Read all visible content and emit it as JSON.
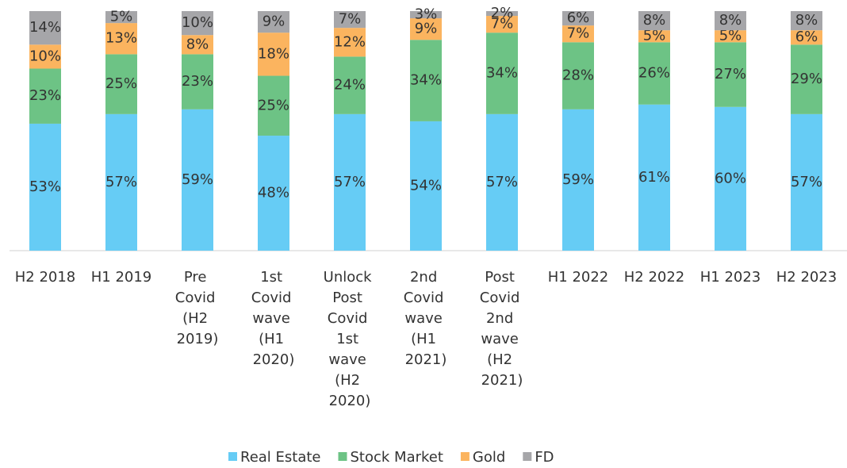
{
  "chart_data": {
    "type": "stacked_bar",
    "categories": [
      "H2 2018",
      "H1 2019",
      "Pre Covid (H2 2019)",
      "1st Covid wave (H1 2020)",
      "Unlock Post Covid 1st wave (H2 2020)",
      "2nd Covid wave (H1 2021)",
      "Post Covid 2nd wave (H2 2021)",
      "H1 2022",
      "H2 2022",
      "H1 2023",
      "H2 2023"
    ],
    "series": [
      {
        "name": "Real Estate",
        "color": "#66ccf5",
        "values": [
          53,
          57,
          59,
          48,
          57,
          54,
          57,
          59,
          61,
          60,
          57
        ],
        "value_labels": [
          "53%",
          "57%",
          "59%",
          "48%",
          "57%",
          "54%",
          "57%",
          "59%",
          "61%",
          "60%",
          "57%"
        ]
      },
      {
        "name": "Stock Market",
        "color": "#6dc385",
        "values": [
          23,
          25,
          23,
          25,
          24,
          34,
          34,
          28,
          26,
          27,
          29
        ],
        "value_labels": [
          "23%",
          "25%",
          "23%",
          "25%",
          "24%",
          "34%",
          "34%",
          "28%",
          "26%",
          "27%",
          "29%"
        ]
      },
      {
        "name": "Gold",
        "color": "#fbb45f",
        "values": [
          10,
          13,
          8,
          18,
          12,
          9,
          7,
          7,
          5,
          5,
          6
        ],
        "value_labels": [
          "10%",
          "13%",
          "8%",
          "18%",
          "12%",
          "9%",
          "7%",
          "7%",
          "5%",
          "5%",
          "6%"
        ]
      },
      {
        "name": "FD",
        "color": "#a6a6a9",
        "values": [
          14,
          5,
          10,
          9,
          7,
          3,
          2,
          6,
          8,
          8,
          8
        ],
        "value_labels": [
          "14%",
          "5%",
          "10%",
          "9%",
          "7%",
          "3%",
          "2%",
          "6%",
          "8%",
          "8%",
          "8%"
        ]
      }
    ],
    "ylim": [
      0,
      100
    ],
    "legend": "bottom"
  }
}
